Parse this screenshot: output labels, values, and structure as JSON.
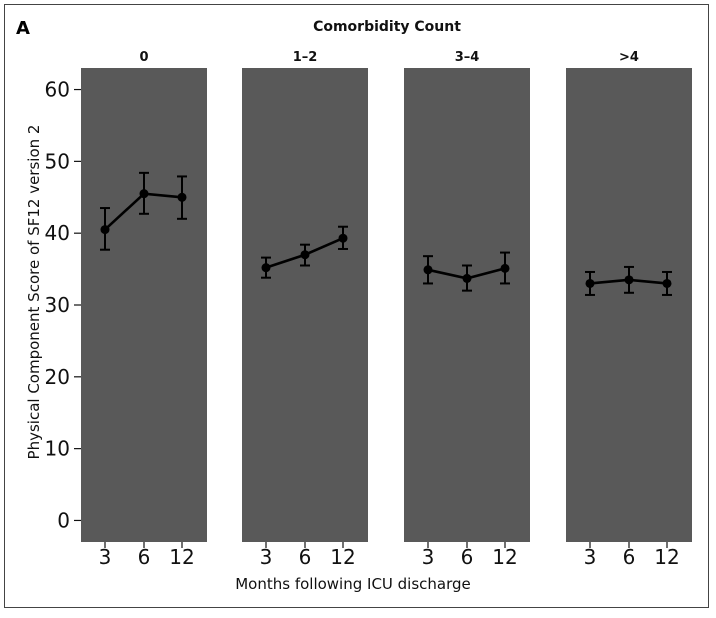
{
  "chart_data": {
    "type": "line",
    "panel_label": "A",
    "title": "Comorbidity Count",
    "xlabel": "Months following ICU discharge",
    "ylabel": "Physical Component Score of SF12 version 2",
    "ylim": [
      -3,
      63
    ],
    "yticks": [
      0,
      10,
      20,
      30,
      40,
      50,
      60
    ],
    "x": [
      "3",
      "6",
      "12"
    ],
    "grid": false,
    "panel_background": "#595959",
    "line_color": "#000000",
    "facets": [
      {
        "label": "0",
        "values": [
          40.5,
          45.5,
          45.0
        ],
        "lower": [
          37.7,
          42.7,
          42.0
        ],
        "upper": [
          43.5,
          48.4,
          47.9
        ]
      },
      {
        "label": "1–2",
        "values": [
          35.2,
          37.0,
          39.3
        ],
        "lower": [
          33.8,
          35.5,
          37.8
        ],
        "upper": [
          36.6,
          38.4,
          40.9
        ]
      },
      {
        "label": "3–4",
        "values": [
          34.9,
          33.7,
          35.1
        ],
        "lower": [
          33.0,
          32.0,
          33.0
        ],
        "upper": [
          36.8,
          35.5,
          37.3
        ]
      },
      {
        "label": ">4",
        "values": [
          33.0,
          33.5,
          33.0
        ],
        "lower": [
          31.4,
          31.7,
          31.4
        ],
        "upper": [
          34.6,
          35.3,
          34.6
        ]
      }
    ]
  }
}
